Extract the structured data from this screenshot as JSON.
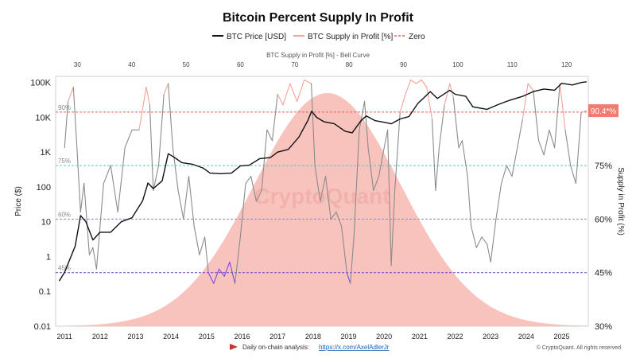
{
  "chart_data": {
    "type": "line",
    "title": "Bitcoin Percent Supply In Profit",
    "legend_position": "top-center",
    "legend": [
      {
        "label": "BTC Price [USD]",
        "color": "#111111",
        "style": "solid"
      },
      {
        "label": "BTC Supply in Profit [%]",
        "color": "#f2a49a",
        "style": "solid"
      },
      {
        "label": "Zero",
        "color": "#e35d5d",
        "style": "dashed"
      }
    ],
    "top_axis": {
      "label": "BTC Supply in Profit [%] - Bell Curve",
      "ticks": [
        "30",
        "40",
        "50",
        "60",
        "70",
        "80",
        "90",
        "100",
        "110",
        "120"
      ],
      "range": [
        26,
        124
      ]
    },
    "x_axis": {
      "label": "",
      "ticks": [
        "2011",
        "2012",
        "2013",
        "2014",
        "2015",
        "2016",
        "2017",
        "2018",
        "2019",
        "2020",
        "2021",
        "2022",
        "2023",
        "2024",
        "2025"
      ],
      "range": [
        2010.75,
        2025.75
      ]
    },
    "y_left": {
      "label": "Price ($)",
      "scale": "log",
      "ticks": [
        "0.01",
        "0.1",
        "1",
        "10",
        "100",
        "1K",
        "10K",
        "100K"
      ],
      "range": [
        0.01,
        150000
      ]
    },
    "y_right": {
      "label": "Supply in Profit (%)",
      "ticks": [
        "30%",
        "45%",
        "60%",
        "75%"
      ],
      "range": [
        30,
        100
      ]
    },
    "reference_lines": [
      {
        "label": "90%",
        "value": 90,
        "color": "#e06060"
      },
      {
        "label": "75%",
        "value": 75,
        "color": "#5cc6c6"
      },
      {
        "label": "60%",
        "value": 60,
        "color": "#8a8ac8"
      },
      {
        "label": "45%",
        "value": 45,
        "color": "#5a4fc9"
      }
    ],
    "current_value_label": "90.4*%",
    "bell_curve": {
      "center": 76,
      "sigma": 13.5,
      "color": "#f7b9b1"
    },
    "series": [
      {
        "name": "BTC Price [USD]",
        "color": "#111111",
        "x": [
          2010.85,
          2011.0,
          2011.3,
          2011.45,
          2011.6,
          2011.8,
          2012.0,
          2012.3,
          2012.6,
          2012.9,
          2013.2,
          2013.35,
          2013.5,
          2013.75,
          2013.92,
          2014.1,
          2014.3,
          2014.6,
          2014.9,
          2015.1,
          2015.4,
          2015.7,
          2015.95,
          2016.2,
          2016.5,
          2016.8,
          2017.0,
          2017.3,
          2017.6,
          2017.85,
          2017.96,
          2018.1,
          2018.3,
          2018.6,
          2018.9,
          2019.1,
          2019.35,
          2019.5,
          2019.75,
          2020.0,
          2020.2,
          2020.45,
          2020.7,
          2020.95,
          2021.1,
          2021.3,
          2021.5,
          2021.85,
          2022.0,
          2022.3,
          2022.5,
          2022.9,
          2023.2,
          2023.5,
          2023.9,
          2024.2,
          2024.5,
          2024.8,
          2025.0,
          2025.3,
          2025.55,
          2025.7
        ],
        "values": [
          0.2,
          0.35,
          2,
          15,
          10,
          3,
          5,
          5,
          10,
          13,
          40,
          130,
          90,
          150,
          900,
          700,
          500,
          450,
          350,
          250,
          240,
          250,
          400,
          420,
          650,
          700,
          1000,
          1200,
          2700,
          8000,
          15000,
          10000,
          7500,
          6500,
          4000,
          3600,
          8000,
          11000,
          8000,
          7200,
          6500,
          9000,
          10500,
          25000,
          35000,
          55000,
          35000,
          60000,
          46000,
          40000,
          20000,
          17000,
          23000,
          30000,
          40000,
          55000,
          65000,
          60000,
          95000,
          85000,
          100000,
          105000
        ]
      },
      {
        "name": "BTC Supply in Profit [%]",
        "color": "#8b8b8b",
        "x": [
          2011.0,
          2011.1,
          2011.25,
          2011.35,
          2011.45,
          2011.55,
          2011.7,
          2011.8,
          2011.9,
          2012.1,
          2012.3,
          2012.5,
          2012.7,
          2012.9,
          2013.1,
          2013.3,
          2013.4,
          2013.5,
          2013.65,
          2013.8,
          2013.92,
          2014.05,
          2014.2,
          2014.35,
          2014.5,
          2014.65,
          2014.8,
          2014.95,
          2015.05,
          2015.2,
          2015.35,
          2015.5,
          2015.65,
          2015.8,
          2015.95,
          2016.1,
          2016.25,
          2016.4,
          2016.55,
          2016.7,
          2016.85,
          2017.0,
          2017.15,
          2017.35,
          2017.55,
          2017.75,
          2017.95,
          2018.05,
          2018.2,
          2018.35,
          2018.5,
          2018.65,
          2018.8,
          2018.95,
          2019.05,
          2019.15,
          2019.3,
          2019.45,
          2019.55,
          2019.7,
          2019.85,
          2020.0,
          2020.1,
          2020.2,
          2020.3,
          2020.45,
          2020.6,
          2020.75,
          2020.9,
          2021.05,
          2021.2,
          2021.35,
          2021.45,
          2021.55,
          2021.7,
          2021.85,
          2021.95,
          2022.1,
          2022.2,
          2022.35,
          2022.45,
          2022.6,
          2022.75,
          2022.9,
          2023.0,
          2023.15,
          2023.3,
          2023.45,
          2023.6,
          2023.75,
          2023.9,
          2024.05,
          2024.2,
          2024.35,
          2024.5,
          2024.65,
          2024.8,
          2024.95,
          2025.1,
          2025.25,
          2025.4,
          2025.55,
          2025.7
        ],
        "values": [
          80,
          93,
          97,
          80,
          62,
          70,
          50,
          52,
          46,
          70,
          75,
          62,
          80,
          85,
          85,
          97,
          92,
          68,
          75,
          95,
          98,
          80,
          68,
          60,
          72,
          58,
          50,
          55,
          45,
          42,
          46,
          44,
          48,
          42,
          55,
          70,
          72,
          65,
          68,
          85,
          82,
          95,
          92,
          98,
          93,
          99,
          98,
          75,
          65,
          72,
          60,
          62,
          58,
          45,
          42,
          55,
          85,
          93,
          80,
          68,
          72,
          80,
          85,
          47,
          68,
          90,
          95,
          99,
          98,
          99,
          97,
          88,
          68,
          80,
          92,
          98,
          94,
          80,
          82,
          72,
          58,
          52,
          55,
          53,
          48,
          60,
          70,
          75,
          72,
          80,
          88,
          98,
          96,
          82,
          78,
          85,
          80,
          98,
          85,
          75,
          70,
          90,
          90.4
        ]
      }
    ]
  },
  "watermark": "CryptoQuant",
  "footer": {
    "source_prefix": "Daily on-chain analysis:",
    "source_link": "https://x.com/AxelAdlerJr",
    "copyright": "© CryptoQuant. All rights reserved"
  },
  "colors": {
    "price_line": "#111111",
    "supply_line": "#8b8b8b",
    "supply_high": "#f2a49a",
    "supply_low": "#7a4ae0",
    "bell_fill": "#f7b9b1",
    "label_bg": "#f07b6e",
    "footer_arrow": "#c0392b"
  }
}
